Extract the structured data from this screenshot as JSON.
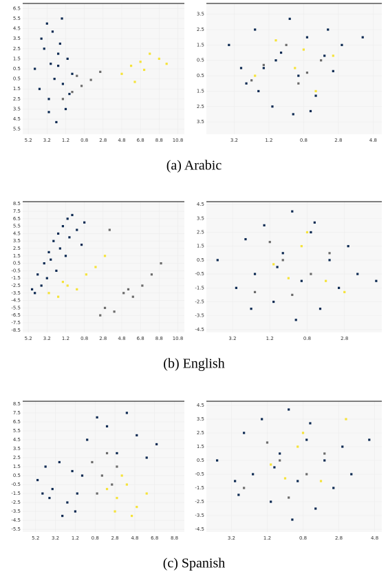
{
  "chart_data": [
    {
      "type": "scatter",
      "xlim": [
        -5.8,
        11.5
      ],
      "ylim": [
        -6,
        7
      ],
      "xticks": [
        {
          "value": -5.2,
          "label": "5.2"
        },
        {
          "value": -3.2,
          "label": "3.2"
        },
        {
          "value": -1.2,
          "label": "1.2"
        },
        0.8,
        2.8,
        4.8,
        6.8,
        8.8,
        10.8
      ],
      "yticks": [
        6.5,
        5.5,
        4.5,
        3.5,
        2.5,
        1.5,
        0.5,
        {
          "value": -0.5,
          "label": "0.5"
        },
        {
          "value": -1.5,
          "label": "1.5"
        },
        {
          "value": -2.5,
          "label": "2.5"
        },
        {
          "value": -3.5,
          "label": "3.5"
        },
        {
          "value": -4.5,
          "label": "4.5"
        },
        {
          "value": -5.5,
          "label": "5.5"
        }
      ],
      "series": [
        {
          "color": "#0d2a52",
          "x": [
            -4.5,
            -3.8,
            -3.2,
            -2.6,
            -2.0,
            -1.5,
            -1.0,
            -0.5,
            -4.0,
            -3.0,
            -2.2,
            -1.2,
            -2.8,
            -1.8,
            -3.5,
            -2.4,
            -1.6,
            -0.8,
            -2.0,
            -3.0
          ],
          "y": [
            0.5,
            3.5,
            5.0,
            4.2,
            2.0,
            -1.0,
            1.5,
            0.0,
            -1.5,
            -2.5,
            -4.8,
            -3.5,
            1.0,
            3.0,
            2.5,
            -0.5,
            5.5,
            -2.0,
            0.8,
            -3.8
          ]
        },
        {
          "color": "#6b6b6b",
          "x": [
            -0.5,
            0.5,
            1.5,
            2.5,
            -1.5,
            0.0
          ],
          "y": [
            -1.8,
            -1.2,
            -0.6,
            0.2,
            -2.5,
            -0.2
          ]
        },
        {
          "color": "#f5e33a",
          "x": [
            4.8,
            5.8,
            6.8,
            7.8,
            8.8,
            6.2,
            7.2,
            9.6
          ],
          "y": [
            0.0,
            0.8,
            1.2,
            2.0,
            1.5,
            -0.8,
            0.4,
            1.0
          ]
        }
      ]
    },
    {
      "type": "scatter",
      "xlim": [
        -4.8,
        5.3
      ],
      "ylim": [
        -4.3,
        4.2
      ],
      "xticks": [
        {
          "value": -3.2,
          "label": "3.2"
        },
        {
          "value": -1.2,
          "label": "1.2"
        },
        0.8,
        2.8,
        4.8
      ],
      "yticks": [
        3.5,
        2.5,
        1.5,
        0.5,
        {
          "value": -0.5,
          "label": "0.5"
        },
        {
          "value": -1.5,
          "label": "1.5"
        },
        {
          "value": -2.5,
          "label": "2.5"
        },
        {
          "value": -3.5,
          "label": "3.5"
        }
      ],
      "series": [
        {
          "color": "#0d2a52",
          "x": [
            -3.5,
            -2.5,
            -2,
            -1.5,
            -1,
            -0.5,
            0,
            0.5,
            1,
            1.5,
            2,
            2.5,
            3,
            -2.8,
            -1.8,
            0.2,
            1.2,
            2.2,
            -0.8,
            4.2
          ],
          "y": [
            1.5,
            -1,
            2.5,
            0,
            -2.5,
            1,
            3.2,
            -0.5,
            2,
            -1.8,
            0.8,
            -0.2,
            1.5,
            0,
            -1.5,
            -3,
            -2.8,
            2.5,
            0.5,
            2
          ]
        },
        {
          "color": "#6b6b6b",
          "x": [
            -1.5,
            0.5,
            1.8,
            -0.2,
            1.0,
            -2.2
          ],
          "y": [
            0.2,
            -1.0,
            0.5,
            1.5,
            -0.3,
            -0.8
          ]
        },
        {
          "color": "#f5e33a",
          "x": [
            -0.8,
            0.3,
            1.5,
            2.5,
            -2.0,
            0.8
          ],
          "y": [
            1.8,
            0.0,
            -1.5,
            0.8,
            -0.5,
            1.2
          ]
        }
      ]
    },
    {
      "type": "scatter",
      "xlim": [
        -5.8,
        11.5
      ],
      "ylim": [
        -8.8,
        8.8
      ],
      "xticks": [
        {
          "value": -5.2,
          "label": "5.2"
        },
        {
          "value": -3.2,
          "label": "3.2"
        },
        {
          "value": -1.2,
          "label": "1.2"
        },
        0.8,
        2.8,
        4.8,
        6.8,
        8.8,
        10.8
      ],
      "yticks": [
        8.5,
        7.5,
        6.5,
        5.5,
        4.5,
        3.5,
        2.5,
        1.5,
        0.5,
        -0.5,
        -1.5,
        -2.5,
        -3.5,
        -4.5,
        -5.5,
        -6.5,
        -7.5,
        -8.5
      ],
      "series": [
        {
          "color": "#0d2a52",
          "x": [
            -4.8,
            -4.2,
            -3.5,
            -3,
            -2.5,
            -2,
            -1.5,
            -1,
            -0.5,
            0,
            0.5,
            -3.8,
            -2.8,
            -1.8,
            -0.8,
            -4.5,
            -2.2,
            -1.2,
            -3.2,
            0.8
          ],
          "y": [
            -3,
            -1,
            0.5,
            2,
            3.5,
            4.5,
            5.5,
            6.5,
            7,
            5,
            3,
            -2.5,
            1,
            2.5,
            4,
            -3.5,
            -0.5,
            1.5,
            -1.5,
            6
          ]
        },
        {
          "color": "#6b6b6b",
          "x": [
            3,
            4,
            5,
            6,
            7,
            8,
            9,
            2.5,
            3.5,
            5.5
          ],
          "y": [
            -5.5,
            -6,
            -3.5,
            -4,
            -2.5,
            -1,
            0.5,
            -6.5,
            5,
            -3
          ]
        },
        {
          "color": "#f5e33a",
          "x": [
            -3,
            -2,
            -1,
            0,
            1,
            2,
            3,
            -1.5
          ],
          "y": [
            -3.5,
            -4,
            -2.5,
            -3,
            -1,
            0,
            1.5,
            -2
          ]
        }
      ]
    },
    {
      "type": "scatter",
      "xlim": [
        -4.6,
        4.8
      ],
      "ylim": [
        -4.7,
        4.7
      ],
      "xticks": [
        {
          "value": -3.2,
          "label": "3.2"
        },
        {
          "value": -1.2,
          "label": "1.2"
        },
        0.8,
        2.8
      ],
      "yticks": [
        4.5,
        3.5,
        2.5,
        1.5,
        0.5,
        -0.5,
        -1.5,
        -2.5,
        -3.5,
        -4.5
      ],
      "series": [
        {
          "color": "#0d2a52",
          "x": [
            -4,
            -3,
            -2.5,
            -2,
            -1.5,
            -1,
            -0.5,
            0,
            0.5,
            1,
            1.5,
            2,
            2.5,
            3,
            3.5,
            4.5,
            -2.2,
            0.2,
            1.2,
            -0.8
          ],
          "y": [
            0.5,
            -1.5,
            2,
            -0.5,
            3,
            -2.5,
            1,
            4,
            -1,
            2.5,
            -3,
            0.5,
            -1.5,
            1.5,
            -0.5,
            -1,
            -3,
            -3.8,
            3.2,
            0
          ]
        },
        {
          "color": "#6b6b6b",
          "x": [
            -2,
            -0.5,
            1,
            2,
            0,
            -1.2
          ],
          "y": [
            -1.8,
            0.5,
            -0.5,
            1,
            -2,
            1.8
          ]
        },
        {
          "color": "#f5e33a",
          "x": [
            -1,
            0.5,
            1.8,
            2.8,
            -0.2,
            0.8
          ],
          "y": [
            0.2,
            1.5,
            -1,
            -1.8,
            -0.8,
            2.5
          ]
        }
      ]
    },
    {
      "type": "scatter",
      "xlim": [
        -6.5,
        9.8
      ],
      "ylim": [
        -5.8,
        8.8
      ],
      "xticks": [
        {
          "value": -5.2,
          "label": "5.2"
        },
        {
          "value": -3.2,
          "label": "3.2"
        },
        {
          "value": -1.2,
          "label": "1.2"
        },
        0.8,
        2.8,
        4.8,
        6.8,
        8.8
      ],
      "yticks": [
        8.5,
        7.5,
        6.5,
        5.5,
        4.5,
        3.5,
        2.5,
        1.5,
        0.5,
        -0.5,
        -1.5,
        -2.5,
        -3.5,
        -4.5,
        -5.5
      ],
      "series": [
        {
          "color": "#0d2a52",
          "x": [
            -5,
            -4.2,
            -3.5,
            -2.8,
            -2,
            -1.2,
            -0.5,
            -3.8,
            -2.5,
            -1.5,
            0,
            1,
            2,
            3,
            4,
            5,
            6,
            7,
            -4.5,
            -1
          ],
          "y": [
            0,
            1.5,
            -1,
            2,
            -2.5,
            -3.5,
            0.5,
            -2,
            -4,
            1,
            4.5,
            7,
            6,
            3,
            7.5,
            5,
            2.5,
            4,
            -1.5,
            -1.5
          ]
        },
        {
          "color": "#6b6b6b",
          "x": [
            0.5,
            1.5,
            2.5,
            3,
            1,
            2
          ],
          "y": [
            2,
            0.5,
            -0.5,
            1.5,
            -1.5,
            3
          ]
        },
        {
          "color": "#f5e33a",
          "x": [
            2,
            3,
            4,
            5,
            6,
            3.5,
            4.5,
            2.8
          ],
          "y": [
            -1,
            -2,
            -0.5,
            -3,
            -1.5,
            0.5,
            -4,
            -3.5
          ]
        }
      ]
    },
    {
      "type": "scatter",
      "xlim": [
        -4.6,
        5.2
      ],
      "ylim": [
        -4.7,
        4.8
      ],
      "xticks": [
        {
          "value": -3.2,
          "label": "3.2"
        },
        {
          "value": -1.2,
          "label": "1.2"
        },
        0.8,
        2.8,
        4.8
      ],
      "yticks": [
        4.5,
        3.5,
        2.5,
        1.5,
        0.5,
        -0.5,
        -1.5,
        -2.5,
        -3.5,
        -4.5
      ],
      "series": [
        {
          "color": "#0d2a52",
          "x": [
            -4,
            -3,
            -2.5,
            -2,
            -1.5,
            -1,
            -0.5,
            0,
            0.5,
            1,
            1.5,
            2,
            2.5,
            3,
            3.5,
            4.5,
            -2.8,
            0.2,
            1.2,
            -0.8
          ],
          "y": [
            0.5,
            -1,
            2.5,
            -0.5,
            3.5,
            -2.5,
            1,
            4.2,
            -1,
            2,
            -3,
            0.5,
            -1.5,
            1.5,
            -0.5,
            2,
            -2,
            -3.8,
            3.2,
            0
          ]
        },
        {
          "color": "#6b6b6b",
          "x": [
            -2.5,
            -0.5,
            1,
            2,
            0,
            -1.2
          ],
          "y": [
            -1.5,
            0.5,
            -0.5,
            1,
            -2.2,
            1.8
          ]
        },
        {
          "color": "#f5e33a",
          "x": [
            -1,
            0.5,
            1.8,
            3.2,
            -0.2,
            0.8
          ],
          "y": [
            0.2,
            1.5,
            -1,
            3.5,
            -0.8,
            2.5
          ]
        }
      ]
    }
  ],
  "captions": [
    "(a) Arabic",
    "(b) English",
    "(c) Spanish"
  ]
}
